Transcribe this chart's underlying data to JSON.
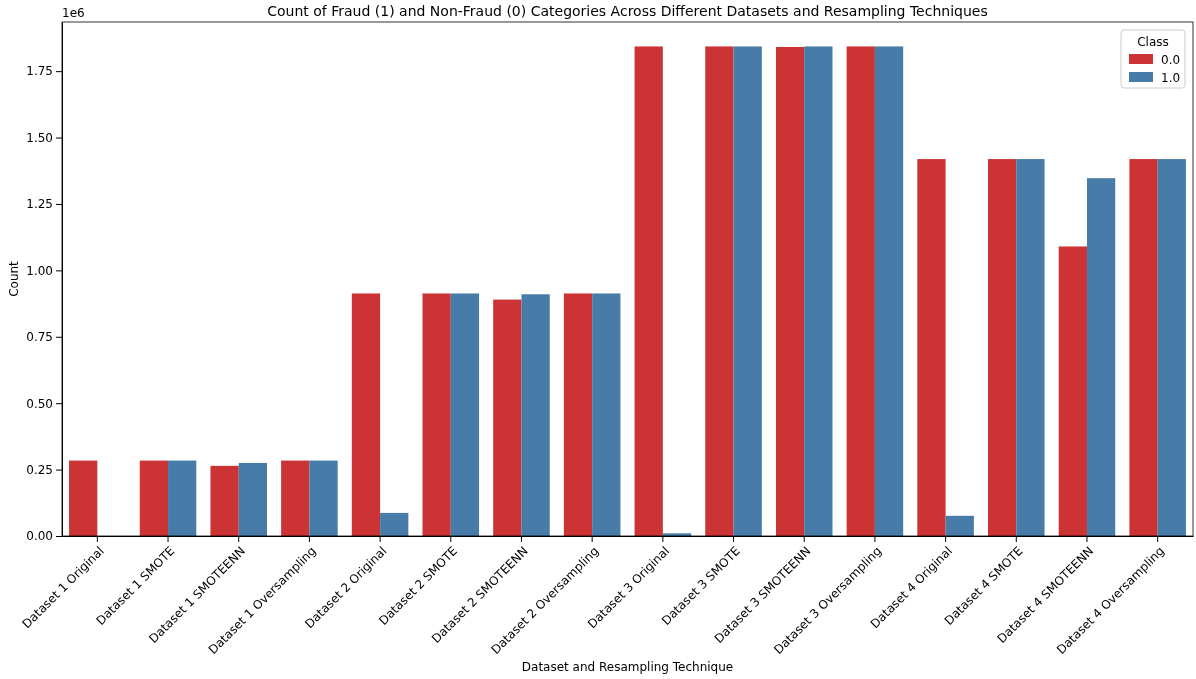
{
  "chart_data": {
    "type": "bar",
    "title": "Count of Fraud (1) and Non-Fraud (0) Categories Across Different Datasets and Resampling Techniques",
    "xlabel": "Dataset and Resampling Technique",
    "ylabel": "Count",
    "legend_title": "Class",
    "annotations": [
      "1e6"
    ],
    "categories": [
      "Dataset 1 Original",
      "Dataset 1 SMOTE",
      "Dataset 1 SMOTEENN",
      "Dataset 1 Oversampling",
      "Dataset 2 Original",
      "Dataset 2 SMOTE",
      "Dataset 2 SMOTEENN",
      "Dataset 2 Oversampling",
      "Dataset 3 Original",
      "Dataset 3 SMOTE",
      "Dataset 3 SMOTEENN",
      "Dataset 3 Oversampling",
      "Dataset 4 Original",
      "Dataset 4 SMOTE",
      "Dataset 4 SMOTEENN",
      "Dataset 4 Oversampling"
    ],
    "series": [
      {
        "name": "0.0",
        "color": "#cb3335",
        "values": [
          0.284,
          0.284,
          0.264,
          0.284,
          0.913,
          0.913,
          0.89,
          0.913,
          1.843,
          1.843,
          1.841,
          1.843,
          1.419,
          1.419,
          1.09,
          1.419
        ]
      },
      {
        "name": "1.0",
        "color": "#477ca8",
        "values": [
          null,
          0.284,
          0.275,
          0.284,
          0.087,
          0.913,
          0.91,
          0.913,
          0.01,
          1.843,
          1.843,
          1.843,
          0.076,
          1.419,
          1.347,
          1.419
        ]
      }
    ],
    "ylim": [
      0,
      1.935
    ],
    "yticks": [
      {
        "value": 0,
        "label": "0.00"
      },
      {
        "value": 0.25,
        "label": "0.25"
      },
      {
        "value": 0.5,
        "label": "0.50"
      },
      {
        "value": 0.75,
        "label": "0.75"
      },
      {
        "value": 1,
        "label": "1.00"
      },
      {
        "value": 1.25,
        "label": "1.25"
      },
      {
        "value": 1.5,
        "label": "1.50"
      },
      {
        "value": 1.75,
        "label": "1.75"
      }
    ],
    "legend": "top right",
    "grid": false
  }
}
